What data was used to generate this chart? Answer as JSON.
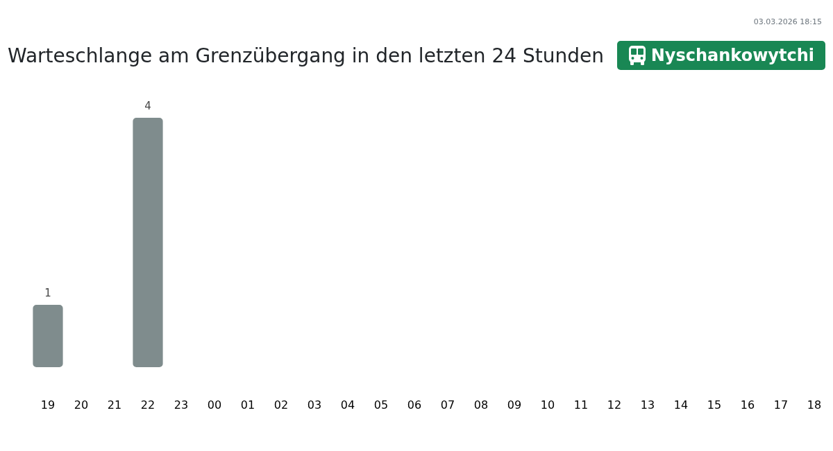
{
  "chart_data": {
    "type": "bar",
    "title": "Warteschlange am Grenzübergang in den letzten 24 Stunden",
    "subtitle": "Nyschankowytchi",
    "annotations": [
      "03.03.2026 18:15"
    ],
    "categories": [
      "19",
      "20",
      "21",
      "22",
      "23",
      "00",
      "01",
      "02",
      "03",
      "04",
      "05",
      "06",
      "07",
      "08",
      "09",
      "10",
      "11",
      "12",
      "13",
      "14",
      "15",
      "16",
      "17",
      "18"
    ],
    "values": [
      1,
      0,
      0,
      4,
      0,
      0,
      0,
      0,
      0,
      0,
      0,
      0,
      0,
      0,
      0,
      0,
      0,
      0,
      0,
      0,
      0,
      0,
      0,
      0
    ],
    "value_labels": [
      "1",
      null,
      null,
      "4",
      null,
      null,
      null,
      null,
      null,
      null,
      null,
      null,
      null,
      null,
      null,
      null,
      null,
      null,
      null,
      null,
      null,
      null,
      null,
      null
    ],
    "color": "#7f8c8d",
    "ylim": [
      0,
      4
    ],
    "tick_labels": "x"
  }
}
